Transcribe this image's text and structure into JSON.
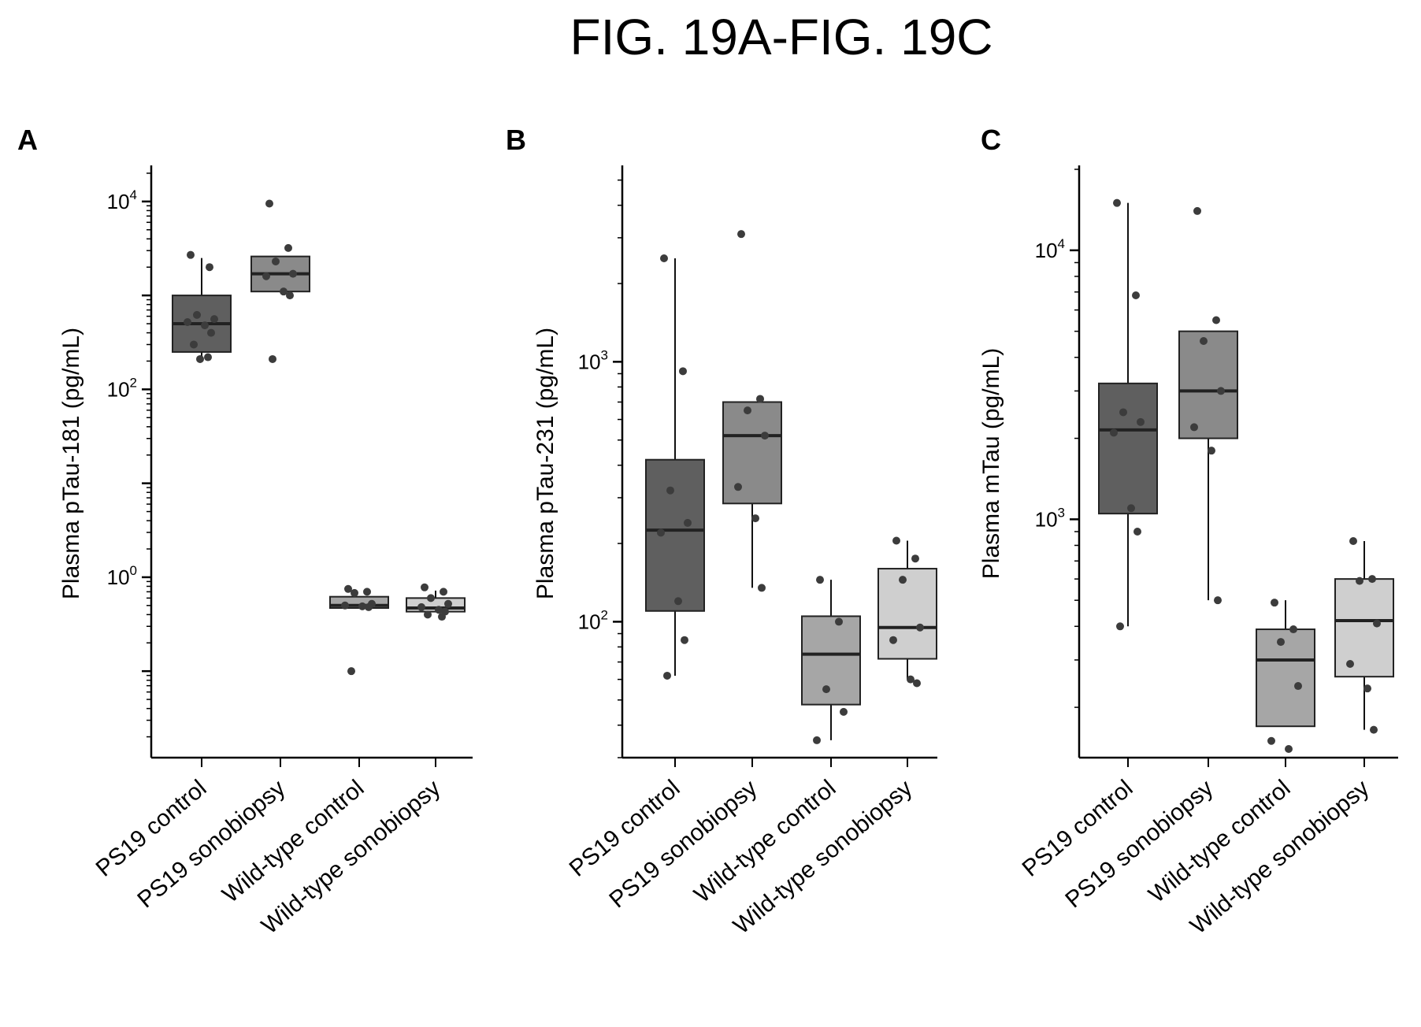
{
  "figure": {
    "title": "FIG. 19A-FIG. 19C"
  },
  "chart_data": [
    {
      "type": "box",
      "panel": "A",
      "ylabel": "Plasma pTau-181 (pg/mL)",
      "yscale": "log",
      "ylim": [
        0.012,
        22000
      ],
      "yticks": [
        {
          "value": 1,
          "label": "10",
          "exp": "0"
        },
        {
          "value": 100,
          "label": "10",
          "exp": "2"
        },
        {
          "value": 10000,
          "label": "10",
          "exp": "4"
        }
      ],
      "categories": [
        "PS19 control",
        "PS19 sonobiopsy",
        "Wild-type control",
        "Wild-type sonobiopsy"
      ],
      "colors": [
        "#5f5f5f",
        "#8a8a8a",
        "#a6a6a6",
        "#cfcfcf"
      ],
      "boxes": [
        {
          "q1": 250,
          "median": 500,
          "q3": 1000,
          "whisker_low": 200,
          "whisker_high": 2500
        },
        {
          "q1": 1100,
          "median": 1700,
          "q3": 2600,
          "whisker_low": 1100,
          "whisker_high": 2600
        },
        {
          "q1": 0.47,
          "median": 0.5,
          "q3": 0.62,
          "whisker_low": 0.47,
          "whisker_high": 0.62
        },
        {
          "q1": 0.43,
          "median": 0.47,
          "q3": 0.6,
          "whisker_low": 0.43,
          "whisker_high": 0.72
        }
      ],
      "points": [
        [
          2700,
          2000,
          620,
          560,
          520,
          480,
          400,
          300,
          220,
          210
        ],
        [
          9500,
          3200,
          2300,
          1700,
          1600,
          1100,
          1000,
          210
        ],
        [
          0.75,
          0.7,
          0.68,
          0.52,
          0.5,
          0.49,
          0.48,
          0.1
        ],
        [
          0.78,
          0.7,
          0.6,
          0.52,
          0.48,
          0.45,
          0.43,
          0.4,
          0.38
        ]
      ]
    },
    {
      "type": "box",
      "panel": "B",
      "ylabel": "Plasma pTau-231 (pg/mL)",
      "yscale": "log",
      "ylim": [
        30,
        5500
      ],
      "yticks": [
        {
          "value": 100,
          "label": "10",
          "exp": "2"
        },
        {
          "value": 1000,
          "label": "10",
          "exp": "3"
        }
      ],
      "categories": [
        "PS19 control",
        "PS19 sonobiopsy",
        "Wild-type control",
        "Wild-type sonobiopsy"
      ],
      "colors": [
        "#5f5f5f",
        "#8a8a8a",
        "#a6a6a6",
        "#cfcfcf"
      ],
      "boxes": [
        {
          "q1": 110,
          "median": 225,
          "q3": 420,
          "whisker_low": 62,
          "whisker_high": 2500
        },
        {
          "q1": 285,
          "median": 520,
          "q3": 700,
          "whisker_low": 135,
          "whisker_high": 700
        },
        {
          "q1": 48,
          "median": 75,
          "q3": 105,
          "whisker_low": 35,
          "whisker_high": 145
        },
        {
          "q1": 72,
          "median": 95,
          "q3": 160,
          "whisker_low": 60,
          "whisker_high": 205
        }
      ],
      "points": [
        [
          2500,
          920,
          320,
          240,
          220,
          120,
          85,
          62
        ],
        [
          3100,
          720,
          650,
          520,
          330,
          250,
          135
        ],
        [
          145,
          100,
          55,
          45,
          35
        ],
        [
          205,
          175,
          145,
          95,
          85,
          60,
          58
        ]
      ]
    },
    {
      "type": "box",
      "panel": "C",
      "ylabel": "Plasma mTau (pg/mL)",
      "yscale": "log",
      "ylim": [
        130,
        20000
      ],
      "yticks": [
        {
          "value": 1000,
          "label": "10",
          "exp": "3"
        },
        {
          "value": 10000,
          "label": "10",
          "exp": "4"
        }
      ],
      "categories": [
        "PS19 control",
        "PS19 sonobiopsy",
        "Wild-type control",
        "Wild-type sonobiopsy"
      ],
      "colors": [
        "#5f5f5f",
        "#8a8a8a",
        "#a6a6a6",
        "#cfcfcf"
      ],
      "boxes": [
        {
          "q1": 1050,
          "median": 2150,
          "q3": 3200,
          "whisker_low": 400,
          "whisker_high": 15000
        },
        {
          "q1": 2000,
          "median": 3000,
          "q3": 5000,
          "whisker_low": 500,
          "whisker_high": 5000
        },
        {
          "q1": 170,
          "median": 300,
          "q3": 390,
          "whisker_low": 170,
          "whisker_high": 500
        },
        {
          "q1": 260,
          "median": 420,
          "q3": 600,
          "whisker_low": 165,
          "whisker_high": 830
        }
      ],
      "points": [
        [
          15000,
          6800,
          2500,
          2300,
          2100,
          1100,
          900,
          400
        ],
        [
          14000,
          5500,
          4600,
          3000,
          2200,
          1800,
          500
        ],
        [
          490,
          390,
          350,
          240,
          150,
          140
        ],
        [
          830,
          600,
          590,
          410,
          290,
          235,
          165
        ]
      ]
    }
  ]
}
